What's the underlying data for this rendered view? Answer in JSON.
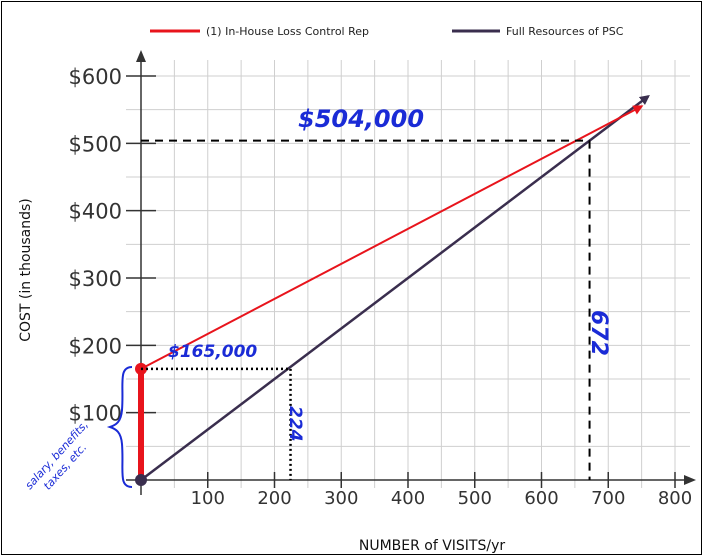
{
  "chart_data": {
    "type": "line",
    "xlabel": "NUMBER of VISITS/yr",
    "ylabel": "COST (in thousands)",
    "xlim": [
      0,
      800
    ],
    "ylim": [
      0,
      600
    ],
    "x_ticks": [
      "100",
      "200",
      "300",
      "400",
      "500",
      "600",
      "700",
      "800"
    ],
    "y_ticks": [
      "$100",
      "$200",
      "$300",
      "$400",
      "$500",
      "$600"
    ],
    "grid": true,
    "legend_position": "top",
    "series": [
      {
        "name": "(1) In-House Loss Control Rep",
        "color": "#e8141c",
        "points": [
          [
            0,
            165
          ],
          [
            750,
            555
          ]
        ]
      },
      {
        "name": "Full Resources of PSC",
        "color": "#3a2e4e",
        "points": [
          [
            0,
            0
          ],
          [
            760,
            570
          ]
        ]
      }
    ],
    "annotations": {
      "intersection_cost": "$504,000",
      "intersection_visits": "672",
      "fixed_cost": "$165,000",
      "fixed_cost_visits": "224",
      "bracket_note": [
        "salary, benefits,",
        "taxes, etc."
      ]
    }
  }
}
